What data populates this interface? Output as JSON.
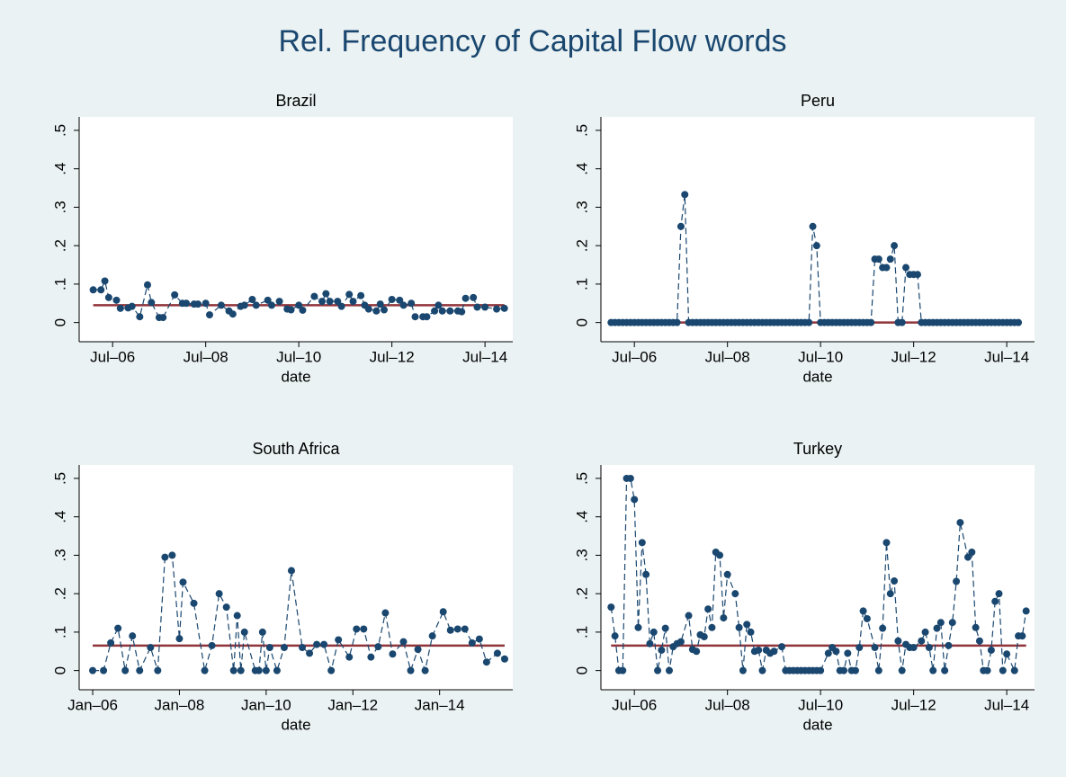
{
  "title": "Rel. Frequency of Capital Flow words",
  "chart_data": [
    {
      "type": "line",
      "title": "Brazil",
      "x_label": "date",
      "color": "#1a476f",
      "line_style": "dashed",
      "reference_line": 0.045,
      "reference_color": "#90353b",
      "xlim": [
        "2005-12",
        "2015-01"
      ],
      "ylim": [
        -0.05,
        0.535
      ],
      "xticks": [
        {
          "value": "2006-07",
          "label": "Jul–06"
        },
        {
          "value": "2008-07",
          "label": "Jul–08"
        },
        {
          "value": "2010-07",
          "label": "Jul–10"
        },
        {
          "value": "2012-07",
          "label": "Jul–12"
        },
        {
          "value": "2014-07",
          "label": "Jul–14"
        }
      ],
      "yticks": [
        0,
        {
          "value": 0.1,
          "label": ".1"
        },
        {
          "value": 0.2,
          "label": ".2"
        },
        {
          "value": 0.3,
          "label": ".3"
        },
        {
          "value": 0.4,
          "label": ".4"
        },
        {
          "value": 0.5,
          "label": ".5"
        }
      ],
      "x": [
        "2006-02",
        "2006-04",
        "2006-05",
        "2006-06",
        "2006-08",
        "2006-09",
        "2006-11",
        "2006-12",
        "2007-02",
        "2007-04",
        "2007-05",
        "2007-07",
        "2007-08",
        "2007-11",
        "2008-01",
        "2008-02",
        "2008-04",
        "2008-05",
        "2008-07",
        "2008-08",
        "2008-11",
        "2009-01",
        "2009-02",
        "2009-04",
        "2009-05",
        "2009-07",
        "2009-08",
        "2009-11",
        "2009-12",
        "2010-02",
        "2010-04",
        "2010-05",
        "2010-07",
        "2010-08",
        "2010-11",
        "2011-01",
        "2011-02",
        "2011-03",
        "2011-05",
        "2011-06",
        "2011-08",
        "2011-09",
        "2011-11",
        "2011-12",
        "2012-01",
        "2012-03",
        "2012-04",
        "2012-05",
        "2012-07",
        "2012-09",
        "2012-10",
        "2012-12",
        "2013-01",
        "2013-03",
        "2013-04",
        "2013-06",
        "2013-07",
        "2013-08",
        "2013-10",
        "2013-12",
        "2014-01",
        "2014-02",
        "2014-04",
        "2014-05",
        "2014-07",
        "2014-10",
        "2014-12"
      ],
      "values": [
        0.085,
        0.085,
        0.108,
        0.065,
        0.058,
        0.037,
        0.038,
        0.042,
        0.015,
        0.098,
        0.052,
        0.013,
        0.013,
        0.072,
        0.05,
        0.05,
        0.048,
        0.048,
        0.05,
        0.02,
        0.045,
        0.03,
        0.022,
        0.042,
        0.045,
        0.06,
        0.045,
        0.058,
        0.045,
        0.055,
        0.035,
        0.033,
        0.045,
        0.032,
        0.068,
        0.055,
        0.075,
        0.055,
        0.055,
        0.042,
        0.073,
        0.055,
        0.07,
        0.045,
        0.035,
        0.03,
        0.048,
        0.033,
        0.06,
        0.058,
        0.045,
        0.05,
        0.015,
        0.015,
        0.015,
        0.03,
        0.045,
        0.03,
        0.03,
        0.03,
        0.028,
        0.063,
        0.065,
        0.04,
        0.04,
        0.035,
        0.037
      ]
    },
    {
      "type": "line",
      "title": "Peru",
      "x_label": "date",
      "color": "#1a476f",
      "line_style": "dashed",
      "reference_line": 0,
      "reference_color": "#90353b",
      "xlim": [
        "2005-12",
        "2015-01"
      ],
      "ylim": [
        -0.05,
        0.535
      ],
      "xticks": [
        {
          "value": "2006-07",
          "label": "Jul–06"
        },
        {
          "value": "2008-07",
          "label": "Jul–08"
        },
        {
          "value": "2010-07",
          "label": "Jul–10"
        },
        {
          "value": "2012-07",
          "label": "Jul–12"
        },
        {
          "value": "2014-07",
          "label": "Jul–14"
        }
      ],
      "yticks": [
        0,
        {
          "value": 0.1,
          "label": ".1"
        },
        {
          "value": 0.2,
          "label": ".2"
        },
        {
          "value": 0.3,
          "label": ".3"
        },
        {
          "value": 0.4,
          "label": ".4"
        },
        {
          "value": 0.5,
          "label": ".5"
        }
      ],
      "x": [
        "2006-01",
        "2006-02",
        "2006-03",
        "2006-04",
        "2006-05",
        "2006-06",
        "2006-07",
        "2006-08",
        "2006-09",
        "2006-10",
        "2006-11",
        "2006-12",
        "2007-01",
        "2007-02",
        "2007-03",
        "2007-04",
        "2007-05",
        "2007-06",
        "2007-07",
        "2007-08",
        "2007-09",
        "2007-10",
        "2007-11",
        "2007-12",
        "2008-01",
        "2008-02",
        "2008-03",
        "2008-04",
        "2008-05",
        "2008-06",
        "2008-07",
        "2008-08",
        "2008-09",
        "2008-10",
        "2008-11",
        "2008-12",
        "2009-01",
        "2009-02",
        "2009-03",
        "2009-04",
        "2009-05",
        "2009-06",
        "2009-07",
        "2009-08",
        "2009-09",
        "2009-10",
        "2009-11",
        "2009-12",
        "2010-01",
        "2010-02",
        "2010-03",
        "2010-04",
        "2010-05",
        "2010-06",
        "2010-07",
        "2010-08",
        "2010-09",
        "2010-10",
        "2010-11",
        "2010-12",
        "2011-01",
        "2011-02",
        "2011-03",
        "2011-04",
        "2011-05",
        "2011-06",
        "2011-07",
        "2011-08",
        "2011-09",
        "2011-10",
        "2011-11",
        "2011-12",
        "2012-01",
        "2012-02",
        "2012-03",
        "2012-04",
        "2012-05",
        "2012-06",
        "2012-07",
        "2012-08",
        "2012-09",
        "2012-10",
        "2012-11",
        "2012-12",
        "2013-01",
        "2013-02",
        "2013-03",
        "2013-04",
        "2013-05",
        "2013-06",
        "2013-07",
        "2013-08",
        "2013-09",
        "2013-10",
        "2013-11",
        "2013-12",
        "2014-01",
        "2014-02",
        "2014-03",
        "2014-04",
        "2014-05",
        "2014-06",
        "2014-07",
        "2014-08",
        "2014-09",
        "2014-10"
      ],
      "values": [
        0,
        0,
        0,
        0,
        0,
        0,
        0,
        0,
        0,
        0,
        0,
        0,
        0,
        0,
        0,
        0,
        0,
        0,
        0.25,
        0.333,
        0,
        0,
        0,
        0,
        0,
        0,
        0,
        0,
        0,
        0,
        0,
        0,
        0,
        0,
        0,
        0,
        0,
        0,
        0,
        0,
        0,
        0,
        0,
        0,
        0,
        0,
        0,
        0,
        0,
        0,
        0,
        0,
        0.25,
        0.2,
        0,
        0,
        0,
        0,
        0,
        0,
        0,
        0,
        0,
        0,
        0,
        0,
        0,
        0,
        0.165,
        0.165,
        0.143,
        0.143,
        0.165,
        0.2,
        0,
        0,
        0.143,
        0.125,
        0.125,
        0.125,
        0,
        0,
        0,
        0,
        0,
        0,
        0,
        0,
        0,
        0,
        0,
        0,
        0,
        0,
        0,
        0,
        0,
        0,
        0,
        0,
        0,
        0,
        0,
        0,
        0,
        0
      ]
    },
    {
      "type": "line",
      "title": "South Africa",
      "x_label": "date",
      "color": "#1a476f",
      "line_style": "dashed",
      "reference_line": 0.065,
      "reference_color": "#90353b",
      "xlim": [
        "2005-11",
        "2015-08"
      ],
      "ylim": [
        -0.05,
        0.535
      ],
      "xticks": [
        {
          "value": "2006-01",
          "label": "Jan–06"
        },
        {
          "value": "2008-01",
          "label": "Jan–08"
        },
        {
          "value": "2010-01",
          "label": "Jan–10"
        },
        {
          "value": "2012-01",
          "label": "Jan–12"
        },
        {
          "value": "2014-01",
          "label": "Jan–14"
        }
      ],
      "yticks": [
        0,
        {
          "value": 0.1,
          "label": ".1"
        },
        {
          "value": 0.2,
          "label": ".2"
        },
        {
          "value": 0.3,
          "label": ".3"
        },
        {
          "value": 0.4,
          "label": ".4"
        },
        {
          "value": 0.5,
          "label": ".5"
        }
      ],
      "x": [
        "2006-01",
        "2006-04",
        "2006-06",
        "2006-08",
        "2006-10",
        "2006-12",
        "2007-02",
        "2007-05",
        "2007-07",
        "2007-09",
        "2007-11",
        "2008-01",
        "2008-02",
        "2008-05",
        "2008-08",
        "2008-10",
        "2008-12",
        "2009-02",
        "2009-04",
        "2009-05",
        "2009-06",
        "2009-07",
        "2009-10",
        "2009-11",
        "2009-12",
        "2010-01",
        "2010-02",
        "2010-04",
        "2010-06",
        "2010-08",
        "2010-11",
        "2011-01",
        "2011-03",
        "2011-05",
        "2011-07",
        "2011-09",
        "2011-12",
        "2012-02",
        "2012-04",
        "2012-06",
        "2012-08",
        "2012-10",
        "2012-12",
        "2013-03",
        "2013-05",
        "2013-07",
        "2013-09",
        "2013-11",
        "2014-02",
        "2014-04",
        "2014-06",
        "2014-08",
        "2014-10",
        "2014-12",
        "2015-02",
        "2015-05",
        "2015-07"
      ],
      "values": [
        0,
        0,
        0.072,
        0.11,
        0,
        0.09,
        0,
        0.06,
        0,
        0.295,
        0.3,
        0.083,
        0.23,
        0.175,
        0,
        0.065,
        0.2,
        0.165,
        0,
        0.143,
        0,
        0.1,
        0,
        0,
        0.1,
        0,
        0.06,
        0,
        0.06,
        0.26,
        0.06,
        0.045,
        0.068,
        0.068,
        0,
        0.08,
        0.035,
        0.108,
        0.108,
        0.035,
        0.062,
        0.15,
        0.043,
        0.075,
        0,
        0.055,
        0,
        0.09,
        0.153,
        0.105,
        0.108,
        0.108,
        0.072,
        0.082,
        0.022,
        0.045,
        0.03
      ]
    },
    {
      "type": "line",
      "title": "Turkey",
      "x_label": "date",
      "color": "#1a476f",
      "line_style": "dashed",
      "reference_line": 0.065,
      "reference_color": "#90353b",
      "xlim": [
        "2005-12",
        "2015-01"
      ],
      "ylim": [
        -0.05,
        0.535
      ],
      "xticks": [
        {
          "value": "2006-07",
          "label": "Jul–06"
        },
        {
          "value": "2008-07",
          "label": "Jul–08"
        },
        {
          "value": "2010-07",
          "label": "Jul–10"
        },
        {
          "value": "2012-07",
          "label": "Jul–12"
        },
        {
          "value": "2014-07",
          "label": "Jul–14"
        }
      ],
      "yticks": [
        0,
        {
          "value": 0.1,
          "label": ".1"
        },
        {
          "value": 0.2,
          "label": ".2"
        },
        {
          "value": 0.3,
          "label": ".3"
        },
        {
          "value": 0.4,
          "label": ".4"
        },
        {
          "value": 0.5,
          "label": ".5"
        }
      ],
      "x": [
        "2006-01",
        "2006-02",
        "2006-03",
        "2006-04",
        "2006-05",
        "2006-06",
        "2006-07",
        "2006-08",
        "2006-09",
        "2006-10",
        "2006-11",
        "2006-12",
        "2007-01",
        "2007-02",
        "2007-03",
        "2007-04",
        "2007-05",
        "2007-06",
        "2007-07",
        "2007-09",
        "2007-10",
        "2007-11",
        "2007-12",
        "2008-01",
        "2008-02",
        "2008-03",
        "2008-04",
        "2008-05",
        "2008-06",
        "2008-07",
        "2008-09",
        "2008-10",
        "2008-11",
        "2008-12",
        "2009-01",
        "2009-02",
        "2009-03",
        "2009-04",
        "2009-05",
        "2009-06",
        "2009-07",
        "2009-09",
        "2009-10",
        "2009-11",
        "2009-12",
        "2010-01",
        "2010-02",
        "2010-03",
        "2010-04",
        "2010-05",
        "2010-06",
        "2010-07",
        "2010-09",
        "2010-10",
        "2010-11",
        "2010-12",
        "2011-01",
        "2011-02",
        "2011-03",
        "2011-04",
        "2011-05",
        "2011-06",
        "2011-07",
        "2011-09",
        "2011-10",
        "2011-11",
        "2011-12",
        "2012-01",
        "2012-02",
        "2012-03",
        "2012-04",
        "2012-05",
        "2012-06",
        "2012-07",
        "2012-09",
        "2012-10",
        "2012-11",
        "2012-12",
        "2013-01",
        "2013-02",
        "2013-03",
        "2013-04",
        "2013-05",
        "2013-06",
        "2013-07",
        "2013-09",
        "2013-10",
        "2013-11",
        "2013-12",
        "2014-01",
        "2014-02",
        "2014-03",
        "2014-04",
        "2014-05",
        "2014-06",
        "2014-07",
        "2014-09",
        "2014-10",
        "2014-11",
        "2014-12"
      ],
      "values": [
        0.165,
        0.09,
        0,
        0,
        0.5,
        0.5,
        0.445,
        0.112,
        0.333,
        0.25,
        0.07,
        0.1,
        0,
        0.053,
        0.11,
        0,
        0.062,
        0.07,
        0.075,
        0.143,
        0.055,
        0.05,
        0.093,
        0.088,
        0.16,
        0.112,
        0.308,
        0.3,
        0.137,
        0.25,
        0.2,
        0.112,
        0,
        0.12,
        0.1,
        0.05,
        0.053,
        0,
        0.053,
        0.045,
        0.05,
        0.062,
        0,
        0,
        0,
        0,
        0,
        0,
        0,
        0,
        0,
        0,
        0.045,
        0.06,
        0.05,
        0,
        0,
        0.045,
        0,
        0,
        0.06,
        0.155,
        0.135,
        0.06,
        0,
        0.11,
        0.333,
        0.2,
        0.233,
        0.077,
        0,
        0.068,
        0.06,
        0.06,
        0.077,
        0.1,
        0.06,
        0,
        0.11,
        0.125,
        0,
        0.065,
        0.125,
        0.232,
        0.385,
        0.295,
        0.308,
        0.112,
        0.077,
        0,
        0,
        0.053,
        0.18,
        0.2,
        0,
        0.043,
        0,
        0.09,
        0.09,
        0.155
      ]
    }
  ]
}
